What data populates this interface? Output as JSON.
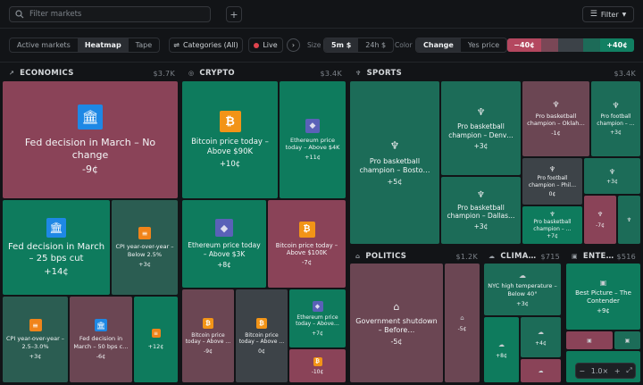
{
  "search": {
    "placeholder": "Filter markets"
  },
  "toolbar": {
    "add_label": "+",
    "filter_label": "Filter"
  },
  "view_tabs": [
    "Active markets",
    "Heatmap",
    "Tape"
  ],
  "categories_label": "Categories (All)",
  "live_label": "Live",
  "size": {
    "label": "Size",
    "options": [
      "5m $",
      "24h $"
    ]
  },
  "color": {
    "label": "Color",
    "options": [
      "Change",
      "Yes price"
    ]
  },
  "legend": {
    "min": "−40¢",
    "max": "+40¢"
  },
  "sections": {
    "economics": {
      "title": "ECONOMICS",
      "total": "$3.7K"
    },
    "crypto": {
      "title": "CRYPTO",
      "total": "$3.4K"
    },
    "sports": {
      "title": "SPORTS",
      "total": "$3.4K"
    },
    "politics": {
      "title": "POLITICS",
      "total": "$1.2K"
    },
    "climate": {
      "title": "CLIMA…",
      "total": "$715"
    },
    "entertainment": {
      "title": "ENTE…",
      "total": "$516"
    }
  },
  "tiles": {
    "eco1": {
      "name": "Fed decision in March – No change",
      "value": "-9¢"
    },
    "eco2": {
      "name": "Fed decision in March – 25 bps cut",
      "value": "+14¢"
    },
    "eco3": {
      "name": "CPI year-over-year – Below 2.5%",
      "value": "+3¢"
    },
    "eco4": {
      "name": "CPI year-over-year – 2.5–3.0%",
      "value": "+3¢"
    },
    "eco5": {
      "name": "Fed decision in March – 50 bps c…",
      "value": "-6¢"
    },
    "eco6": {
      "name": "",
      "value": "+12¢"
    },
    "cr1": {
      "name": "Bitcoin price today – Above $90K",
      "value": "+10¢"
    },
    "cr2": {
      "name": "Ethereum price today – Above $4K",
      "value": "+11¢"
    },
    "cr3": {
      "name": "Ethereum price today – Above $3K",
      "value": "+8¢"
    },
    "cr4": {
      "name": "Bitcoin price today – Above $100K",
      "value": "-7¢"
    },
    "cr5": {
      "name": "Bitcoin price today – Above …",
      "value": "-9¢"
    },
    "cr6": {
      "name": "Bitcoin price today – Above …",
      "value": "0¢"
    },
    "cr7": {
      "name": "Ethereum price today – Above…",
      "value": "+7¢"
    },
    "cr8": {
      "name": "",
      "value": "-10¢"
    },
    "sp1": {
      "name": "Pro basketball champion – Bosto…",
      "value": "+5¢"
    },
    "sp2": {
      "name": "Pro basketball champion – Denv…",
      "value": "+3¢"
    },
    "sp3": {
      "name": "Pro basketball champion – Dallas…",
      "value": "+3¢"
    },
    "sp4": {
      "name": "Pro basketball champion – Oklah…",
      "value": "-1¢"
    },
    "sp5": {
      "name": "Pro football champion – Phil…",
      "value": "0¢"
    },
    "sp6": {
      "name": "Pro basketball champion – …",
      "value": "+7¢"
    },
    "sp7": {
      "name": "Pro football champion – …",
      "value": "+3¢"
    },
    "sp8": {
      "name": "",
      "value": "+3¢"
    },
    "sp9": {
      "name": "",
      "value": "-7¢"
    },
    "po1": {
      "name": "Government shutdown – Before…",
      "value": "-5¢"
    },
    "po2": {
      "name": "",
      "value": "-5¢"
    },
    "cl1": {
      "name": "NYC high temperature – Below 40°",
      "value": "+3¢"
    },
    "cl2": {
      "name": "",
      "value": "+8¢"
    },
    "cl3": {
      "name": "",
      "value": "+4¢"
    },
    "en1": {
      "name": "Best Picture – The Contender",
      "value": "+9¢"
    }
  },
  "zoom": {
    "minus": "−",
    "level": "1.0×",
    "plus": "+"
  },
  "icons": {
    "economics": "chart-line-icon",
    "crypto": "coin-icon",
    "sports": "trophy-icon",
    "politics": "capitol-icon",
    "climate": "weather-icon",
    "entertainment": "film-icon"
  }
}
